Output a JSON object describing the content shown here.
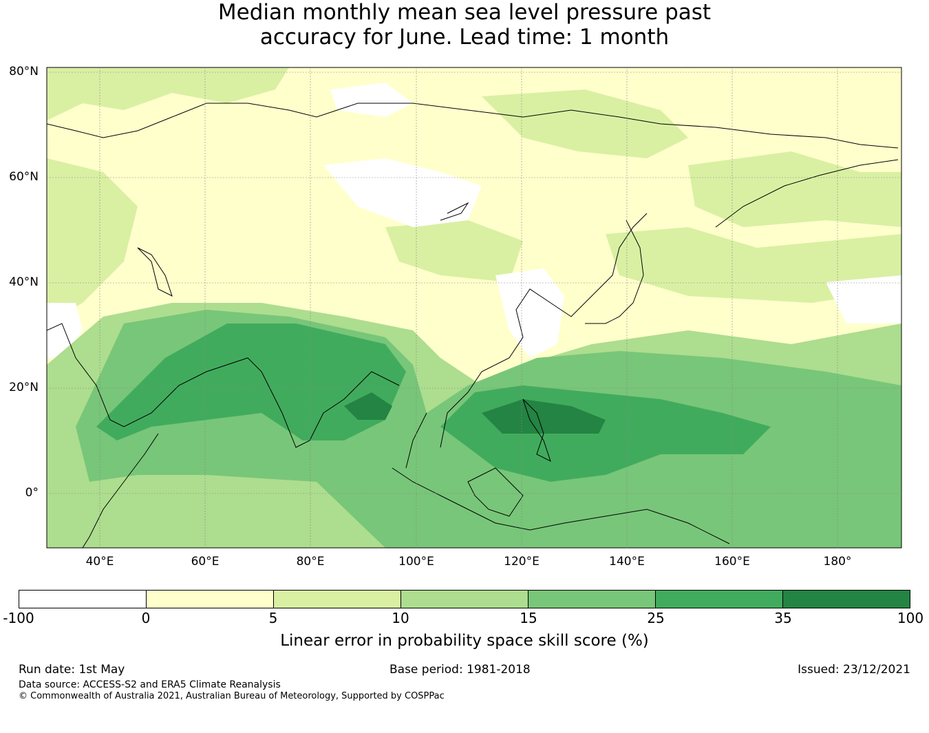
{
  "title": {
    "line1": "Median monthly mean sea level pressure past",
    "line2": "accuracy for June. Lead time: 1 month"
  },
  "map": {
    "type": "filled contour map",
    "region": "Asia and Western Pacific",
    "lat_ticks": [
      "80°N",
      "60°N",
      "40°N",
      "20°N",
      "0°"
    ],
    "lon_ticks": [
      "40°E",
      "60°E",
      "80°E",
      "100°E",
      "120°E",
      "140°E",
      "160°E",
      "180°"
    ],
    "extent": {
      "lon": [
        30,
        192
      ],
      "lat": [
        -10,
        81
      ]
    },
    "gridlines": true,
    "coastlines": true,
    "colors": {
      "white": "#ffffff",
      "c0_5": "#ffffcc",
      "c5_10": "#d9f0a3",
      "c10_15": "#addd8e",
      "c15_25": "#78c679",
      "c25_35": "#41ab5d",
      "c35_100": "#238443"
    }
  },
  "colorbar": {
    "ticks": [
      "-100",
      "0",
      "5",
      "10",
      "15",
      "25",
      "35",
      "100"
    ],
    "colors": [
      "#ffffff",
      "#ffffcc",
      "#d9f0a3",
      "#addd8e",
      "#78c679",
      "#41ab5d",
      "#238443"
    ],
    "label": "Linear error in probability space skill score (%)"
  },
  "footer": {
    "run_date": "Run date: 1st May",
    "base_period": "Base period: 1981-2018",
    "issued": "Issued: 23/12/2021",
    "data_source": "Data source: ACCESS-S2 and ERA5 Climate Reanalysis",
    "copyright": "© Commonwealth of Australia 2021, Australian Bureau of Meteorology, Supported by COSPPac"
  }
}
